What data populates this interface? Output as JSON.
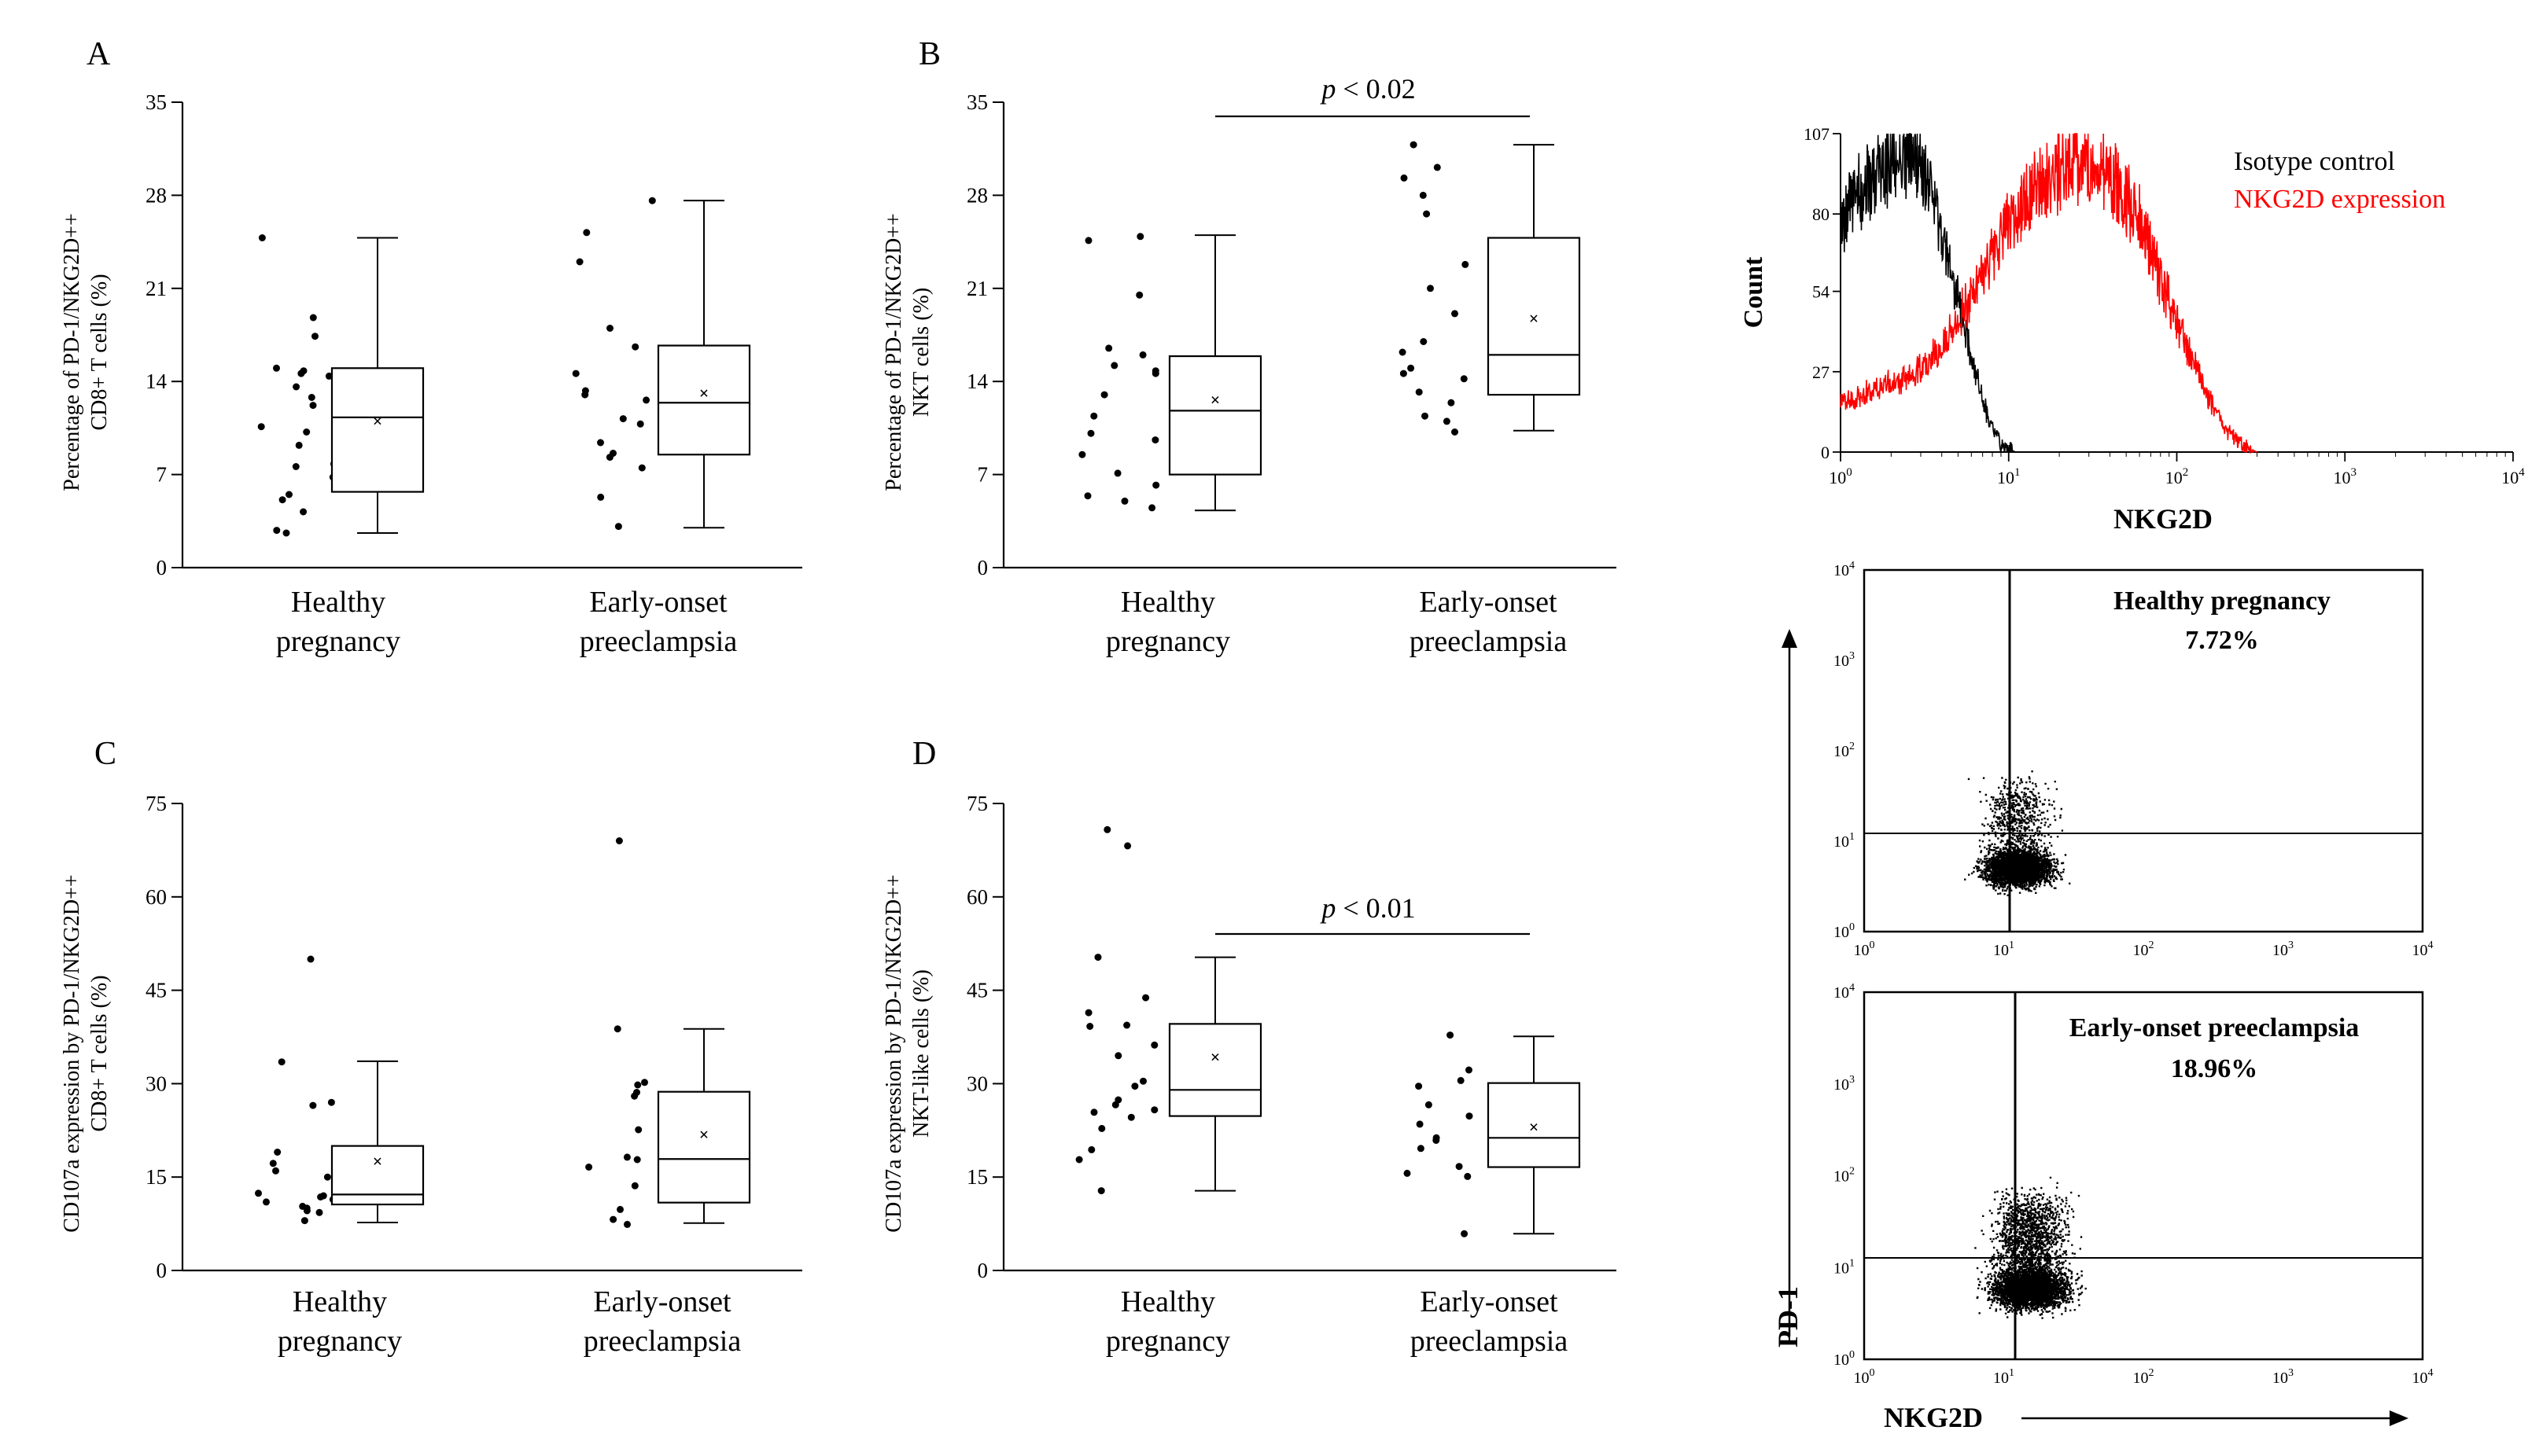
{
  "panels": [
    {
      "letter": "A",
      "ylabel_line1": "Percentage of PD-1/NKG2D++",
      "ylabel_line2": "CD8+ T cells (%)",
      "categories": [
        "Healthy",
        "Early-onset"
      ],
      "categories_line2": [
        "pregnancy",
        "preeclampsia"
      ]
    },
    {
      "letter": "B",
      "ylabel_line1": "Percentage of PD-1/NKG2D++",
      "ylabel_line2": "NKT cells (%)",
      "categories": [
        "Healthy",
        "Early-onset"
      ],
      "categories_line2": [
        "pregnancy",
        "preeclampsia"
      ],
      "pvalue_prefix": "p",
      "pvalue_rest": " < 0.02"
    },
    {
      "letter": "C",
      "ylabel_line1": "CD107a expression by PD-1/NKG2D++",
      "ylabel_line2": "CD8+ T cells (%)",
      "categories": [
        "Healthy",
        "Early-onset"
      ],
      "categories_line2": [
        "pregnancy",
        "preeclampsia"
      ]
    },
    {
      "letter": "D",
      "ylabel_line1": "CD107a expression by PD-1/NKG2D++",
      "ylabel_line2": "NKT-like cells (%)",
      "categories": [
        "Healthy",
        "Early-onset"
      ],
      "categories_line2": [
        "pregnancy",
        "preeclampsia"
      ],
      "pvalue_prefix": "p",
      "pvalue_rest": " < 0.01"
    }
  ],
  "histogram": {
    "ylabel": "Count",
    "xlabel": "NKG2D",
    "legend": [
      "Isotype control",
      "NKG2D expression"
    ],
    "yticks": [
      "107",
      "80",
      "54",
      "27",
      "0"
    ],
    "xticks_base": [
      "10",
      "10",
      "10",
      "10",
      "10"
    ],
    "xticks_exp": [
      "0",
      "1",
      "2",
      "3",
      "4"
    ]
  },
  "dotplots": {
    "ylabel": "PD-1",
    "xlabel": "NKG2D",
    "ticks_base": [
      "10",
      "10",
      "10",
      "10",
      "10"
    ],
    "ticks_exp": [
      "0",
      "1",
      "2",
      "3",
      "4"
    ],
    "healthy_label": "Healthy pregnancy",
    "healthy_pct": "7.72%",
    "pe_label": "Early-onset preeclampsia",
    "pe_pct": "18.96%"
  },
  "colors": {
    "isotype": "#000000",
    "nkg2d": "#ff0000"
  },
  "chart_data": [
    {
      "type": "box",
      "panel": "A",
      "ylim": [
        0,
        35
      ],
      "yticks": [
        0,
        7,
        14,
        21,
        28,
        35
      ],
      "groups": [
        {
          "name": "Healthy pregnancy",
          "points": [
            2.8,
            2.6,
            4.2,
            5.1,
            5.5,
            6.8,
            7.8,
            7.6,
            9.2,
            10.2,
            10.6,
            12.2,
            12.8,
            13.6,
            14.4,
            14.8,
            15.0,
            14.6,
            17.4,
            18.8,
            24.8
          ],
          "box": {
            "min": 2.6,
            "q1": 5.7,
            "median": 11.3,
            "q3": 15.0,
            "max": 24.8,
            "mean": 11.0
          }
        },
        {
          "name": "Early-onset preeclampsia",
          "points": [
            3.1,
            5.3,
            7.5,
            8.3,
            8.6,
            9.4,
            10.8,
            11.2,
            12.6,
            13.3,
            13.0,
            14.6,
            16.6,
            18.0,
            23.0,
            25.2,
            27.6
          ],
          "box": {
            "min": 3.0,
            "q1": 8.5,
            "median": 12.4,
            "q3": 16.7,
            "max": 27.6,
            "mean": 13.1
          }
        }
      ]
    },
    {
      "type": "box",
      "panel": "B",
      "ylim": [
        0,
        35
      ],
      "yticks": [
        0,
        7,
        14,
        21,
        28,
        35
      ],
      "significance": "p < 0.02",
      "groups": [
        {
          "name": "Healthy pregnancy",
          "points": [
            4.5,
            5.0,
            5.4,
            6.2,
            7.1,
            8.5,
            9.6,
            10.1,
            11.4,
            13.0,
            14.6,
            14.8,
            15.2,
            16.5,
            16.0,
            20.5,
            24.9,
            24.6
          ],
          "box": {
            "min": 4.3,
            "q1": 7.0,
            "median": 11.8,
            "q3": 15.9,
            "max": 25.0,
            "mean": 12.6
          }
        },
        {
          "name": "Early-onset preeclampsia",
          "points": [
            10.2,
            11.0,
            11.4,
            12.4,
            13.2,
            14.2,
            14.6,
            15.0,
            16.2,
            17.0,
            19.1,
            21.0,
            22.8,
            26.6,
            28.0,
            29.3,
            30.1,
            31.8
          ],
          "box": {
            "min": 10.3,
            "q1": 13.0,
            "median": 16.0,
            "q3": 24.8,
            "max": 31.8,
            "mean": 18.7
          }
        }
      ]
    },
    {
      "type": "box",
      "panel": "C",
      "ylim": [
        0,
        75
      ],
      "yticks": [
        0,
        15,
        30,
        45,
        60,
        75
      ],
      "groups": [
        {
          "name": "Healthy pregnancy",
          "points": [
            8.0,
            9.3,
            9.6,
            10.0,
            10.3,
            11.0,
            11.4,
            11.8,
            12.0,
            12.4,
            15.0,
            16.0,
            17.2,
            19.0,
            26.5,
            27.0,
            33.5,
            50.0
          ],
          "box": {
            "min": 7.7,
            "q1": 10.6,
            "median": 12.2,
            "q3": 20.0,
            "max": 33.6,
            "mean": 17.5
          }
        },
        {
          "name": "Early-onset preeclampsia",
          "points": [
            7.4,
            8.2,
            9.8,
            13.6,
            16.6,
            17.8,
            18.2,
            22.6,
            28.0,
            28.6,
            29.8,
            30.2,
            38.8,
            69.0
          ],
          "box": {
            "min": 7.6,
            "q1": 10.9,
            "median": 17.9,
            "q3": 28.7,
            "max": 38.8,
            "mean": 21.8
          }
        }
      ]
    },
    {
      "type": "box",
      "panel": "D",
      "ylim": [
        0,
        75
      ],
      "yticks": [
        0,
        15,
        30,
        45,
        60,
        75
      ],
      "significance": "p < 0.01",
      "groups": [
        {
          "name": "Healthy pregnancy",
          "points": [
            12.8,
            17.8,
            19.4,
            22.8,
            24.6,
            25.4,
            25.8,
            26.6,
            27.4,
            29.6,
            30.4,
            34.5,
            36.2,
            39.2,
            39.4,
            41.4,
            43.8,
            50.3,
            68.2,
            70.8
          ],
          "box": {
            "min": 12.8,
            "q1": 24.8,
            "median": 29.0,
            "q3": 39.6,
            "max": 50.3,
            "mean": 34.2
          }
        },
        {
          "name": "Early-onset preeclampsia",
          "points": [
            5.9,
            15.1,
            15.6,
            16.7,
            19.6,
            20.9,
            21.3,
            23.5,
            24.8,
            26.6,
            29.6,
            30.5,
            32.2,
            37.8
          ],
          "box": {
            "min": 5.9,
            "q1": 16.6,
            "median": 21.3,
            "q3": 30.1,
            "max": 37.6,
            "mean": 23.0
          }
        }
      ]
    },
    {
      "type": "area",
      "panel": "histogram",
      "x_scale": "log",
      "xlim": [
        1,
        10000
      ],
      "ylim": [
        0,
        107
      ],
      "series": [
        {
          "name": "Isotype control",
          "x": [
            1,
            1.3,
            1.7,
            2,
            2.5,
            3,
            3.5,
            4,
            5,
            6,
            7,
            8,
            9,
            10,
            11
          ],
          "y": [
            78,
            88,
            93,
            96,
            100,
            95,
            85,
            72,
            50,
            32,
            17,
            7,
            3,
            1,
            0
          ]
        },
        {
          "name": "NKG2D expression",
          "x": [
            1,
            1.5,
            2,
            3,
            4,
            5,
            7,
            10,
            14,
            20,
            30,
            40,
            50,
            60,
            80,
            100,
            130,
            160,
            200,
            250,
            300
          ],
          "y": [
            16,
            20,
            23,
            28,
            35,
            44,
            60,
            76,
            88,
            95,
            97,
            94,
            86,
            77,
            58,
            44,
            28,
            16,
            7,
            2,
            0
          ]
        }
      ]
    }
  ]
}
